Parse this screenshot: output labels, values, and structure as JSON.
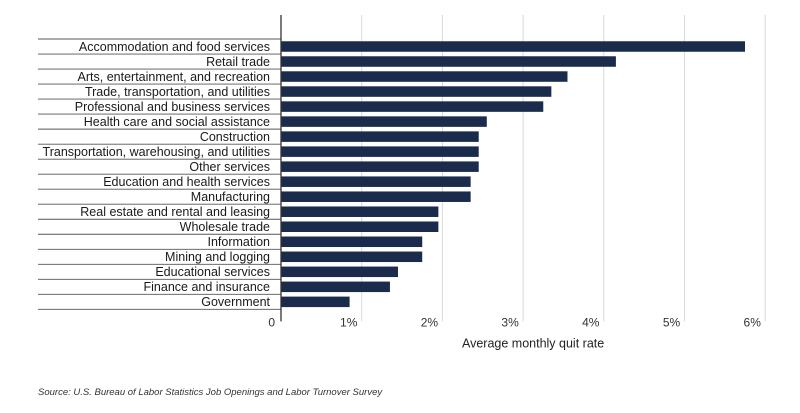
{
  "chart_data": {
    "type": "bar",
    "orientation": "horizontal",
    "categories": [
      "Accommodation and food services",
      "Retail trade",
      "Arts, entertainment, and recreation",
      "Trade, transportation, and utilities",
      "Professional and business services",
      "Health care and social assistance",
      "Construction",
      "Transportation, warehousing, and utilities",
      "Other services",
      "Education and health services",
      "Manufacturing",
      "Real estate and rental and leasing",
      "Wholesale trade",
      "Information",
      "Mining and logging",
      "Educational services",
      "Finance and insurance",
      "Government"
    ],
    "values": [
      5.75,
      4.15,
      3.55,
      3.35,
      3.25,
      2.55,
      2.45,
      2.45,
      2.45,
      2.35,
      2.35,
      1.95,
      1.95,
      1.75,
      1.75,
      1.45,
      1.35,
      0.85
    ],
    "xlim": [
      0,
      6
    ],
    "ticks": [
      0,
      1,
      2,
      3,
      4,
      5,
      6
    ],
    "tick_labels": [
      "0",
      "1%",
      "2%",
      "3%",
      "4%",
      "5%",
      "6%"
    ],
    "xlabel": "Average monthly quit rate",
    "ylabel": "",
    "title": "",
    "grid": true,
    "bar_color": "#1a2b4c"
  },
  "source": "Source:  U.S. Bureau of Labor Statistics Job Openings and Labor Turnover Survey"
}
